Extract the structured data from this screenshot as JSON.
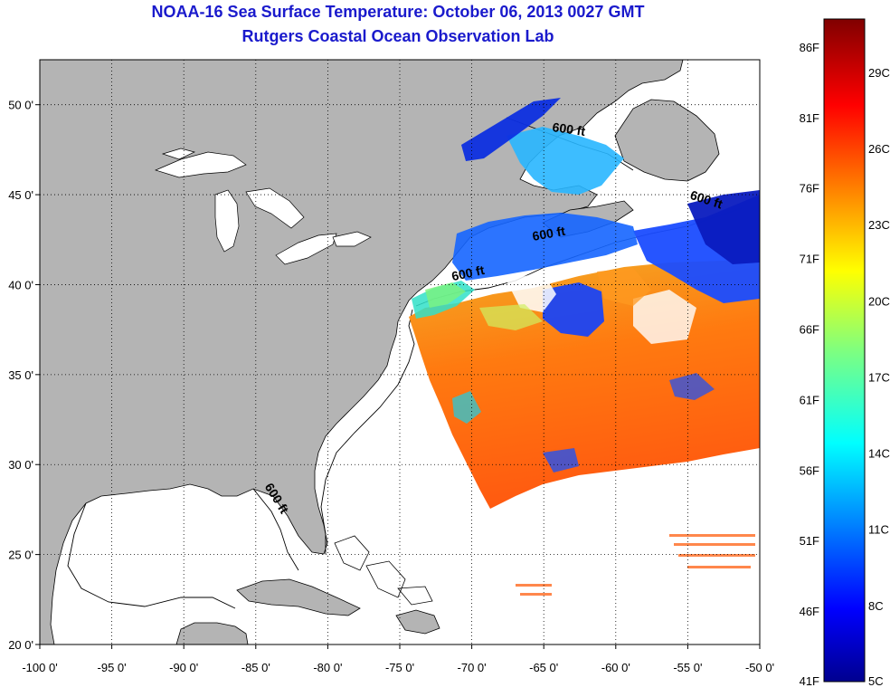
{
  "title": "NOAA-16 Sea Surface Temperature:  October 06, 2013 0027 GMT",
  "subtitle": "Rutgers Coastal Ocean Observation Lab",
  "map": {
    "lon_range": [
      -100,
      -50
    ],
    "lat_range": [
      20,
      52.5
    ],
    "lon_ticks": [
      {
        "value": -100,
        "label": "-100 0'"
      },
      {
        "value": -95,
        "label": "-95 0'"
      },
      {
        "value": -90,
        "label": "-90 0'"
      },
      {
        "value": -85,
        "label": "-85 0'"
      },
      {
        "value": -80,
        "label": "-80 0'"
      },
      {
        "value": -75,
        "label": "-75 0'"
      },
      {
        "value": -70,
        "label": "-70 0'"
      },
      {
        "value": -65,
        "label": "-65 0'"
      },
      {
        "value": -60,
        "label": "-60 0'"
      },
      {
        "value": -55,
        "label": "-55 0'"
      },
      {
        "value": -50,
        "label": "-50 0'"
      }
    ],
    "lat_ticks": [
      {
        "value": 50,
        "label": "50 0'"
      },
      {
        "value": 45,
        "label": "45 0'"
      },
      {
        "value": 40,
        "label": "40 0'"
      },
      {
        "value": 35,
        "label": "35 0'"
      },
      {
        "value": 30,
        "label": "30 0'"
      },
      {
        "value": 25,
        "label": "25 0'"
      },
      {
        "value": 20,
        "label": "20 0'"
      }
    ],
    "contour_labels": [
      {
        "text": "600 ft",
        "lon": -63.3,
        "lat": 48.4,
        "rot": 8
      },
      {
        "text": "600 ft",
        "lon": -53.8,
        "lat": 44.5,
        "rot": 18
      },
      {
        "text": "600 ft",
        "lon": -64.6,
        "lat": 42.6,
        "rot": -10
      },
      {
        "text": "600 ft",
        "lon": -70.2,
        "lat": 40.4,
        "rot": -12
      },
      {
        "text": "600 ft",
        "lon": -83.8,
        "lat": 28.0,
        "rot": 58
      }
    ],
    "land_color": "#b4b4b4",
    "ocean_color": "#ffffff",
    "grid": "dotted"
  },
  "colorbar": {
    "range_c": [
      5,
      31.1
    ],
    "fahrenheit_labels": [
      "86F",
      "81F",
      "76F",
      "71F",
      "66F",
      "61F",
      "56F",
      "51F",
      "46F",
      "41F"
    ],
    "celsius_labels": [
      "29C",
      "26C",
      "23C",
      "20C",
      "17C",
      "14C",
      "11C",
      "8C",
      "5C"
    ],
    "colormap": "jet"
  }
}
